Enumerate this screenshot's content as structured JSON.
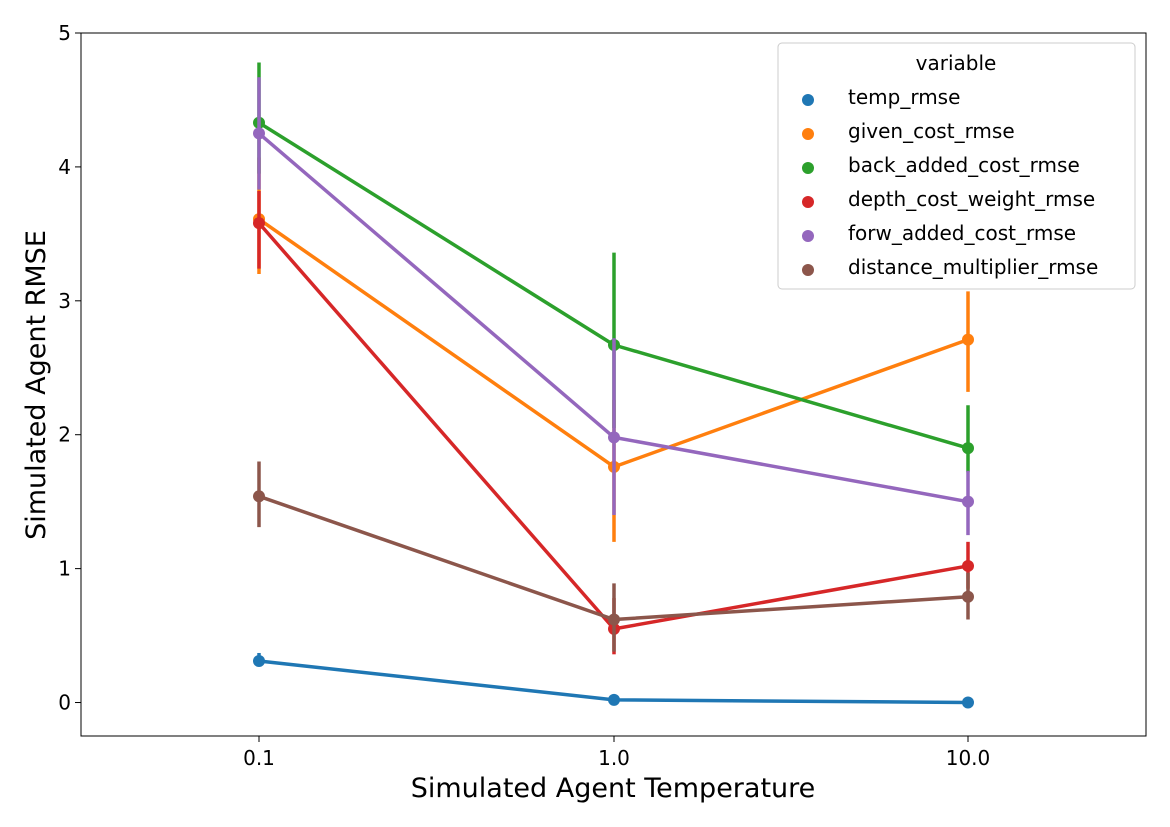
{
  "chart_data": {
    "type": "line",
    "xlabel": "Simulated Agent Temperature",
    "ylabel": "Simulated Agent RMSE",
    "categories": [
      "0.1",
      "1.0",
      "10.0"
    ],
    "ylim": [
      -0.25,
      5.0
    ],
    "yticks": [
      "0",
      "1",
      "2",
      "3",
      "4",
      "5"
    ],
    "grid": false,
    "legend": {
      "title": "variable",
      "placement": "top-right"
    },
    "series": [
      {
        "name": "temp_rmse",
        "color": "#1f77b4",
        "values": [
          0.31,
          0.02,
          0.0
        ],
        "err_low": [
          0.28,
          0.01,
          0.0
        ],
        "err_high": [
          0.37,
          0.04,
          0.01
        ]
      },
      {
        "name": "given_cost_rmse",
        "color": "#ff7f0e",
        "values": [
          3.61,
          1.76,
          2.71
        ],
        "err_low": [
          3.2,
          1.2,
          2.32
        ],
        "err_high": [
          4.07,
          2.26,
          3.07
        ]
      },
      {
        "name": "back_added_cost_rmse",
        "color": "#2ca02c",
        "values": [
          4.33,
          2.67,
          1.9
        ],
        "err_low": [
          3.95,
          2.05,
          1.72
        ],
        "err_high": [
          4.78,
          3.36,
          2.22
        ]
      },
      {
        "name": "depth_cost_weight_rmse",
        "color": "#d62728",
        "values": [
          3.58,
          0.55,
          1.02
        ],
        "err_low": [
          3.24,
          0.36,
          0.85
        ],
        "err_high": [
          3.82,
          0.78,
          1.2
        ]
      },
      {
        "name": "forw_added_cost_rmse",
        "color": "#9467bd",
        "values": [
          4.25,
          1.98,
          1.5
        ],
        "err_low": [
          3.83,
          1.4,
          1.25
        ],
        "err_high": [
          4.67,
          2.72,
          1.73
        ]
      },
      {
        "name": "distance_multiplier_rmse",
        "color": "#8c564b",
        "values": [
          1.54,
          0.62,
          0.79
        ],
        "err_low": [
          1.31,
          0.38,
          0.62
        ],
        "err_high": [
          1.8,
          0.89,
          0.97
        ]
      }
    ]
  }
}
